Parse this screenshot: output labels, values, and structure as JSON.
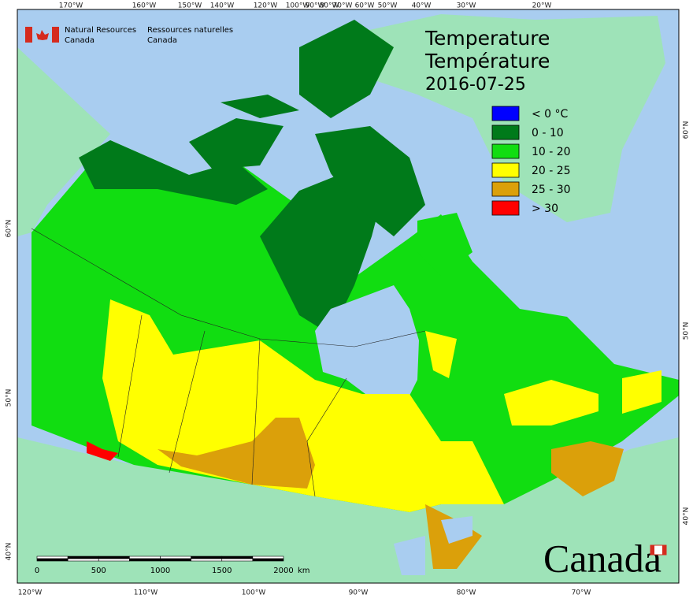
{
  "org": {
    "en": [
      "Natural Resources",
      "Canada"
    ],
    "fr": [
      "Ressources naturelles",
      "Canada"
    ]
  },
  "title": {
    "line1": "Temperature",
    "line2": "Température",
    "date": "2016-07-25"
  },
  "legend": [
    {
      "label": "< 0 °C",
      "color": "#0000ff"
    },
    {
      "label": "0 - 10",
      "color": "#007a1a"
    },
    {
      "label": "10 - 20",
      "color": "#11dd11"
    },
    {
      "label": "20 - 25",
      "color": "#ffff00"
    },
    {
      "label": "25 - 30",
      "color": "#dba00a"
    },
    {
      "label": "> 30",
      "color": "#ff0000"
    }
  ],
  "top_labels": [
    "170°W",
    "160°W",
    "150°W",
    "140°W",
    "120°W",
    "100°W",
    "90°W",
    "80°W",
    "70°W",
    "60°W",
    "50°W",
    "40°W",
    "30°W",
    "20°W"
  ],
  "bottom_labels": [
    "120°W",
    "110°W",
    "100°W",
    "90°W",
    "80°W",
    "70°W"
  ],
  "left_labels": [
    "60°N",
    "50°N",
    "40°N"
  ],
  "right_labels": [
    "60°N",
    "50°N",
    "40°N"
  ],
  "scale_bar": {
    "ticks": [
      0,
      500,
      1000,
      1500,
      2000
    ],
    "unit": "km"
  },
  "wordmark": "Canada"
}
